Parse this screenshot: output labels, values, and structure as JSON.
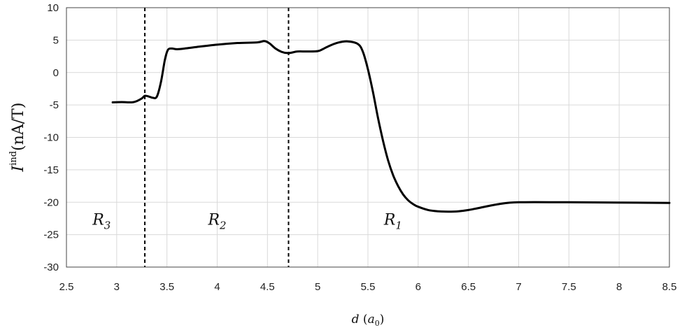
{
  "chart_data": {
    "type": "line",
    "xlabel": {
      "var": "d",
      "open": " (",
      "unit": "a",
      "sub": "0",
      "close": ")"
    },
    "ylabel": {
      "var": "I",
      "sup": "ind",
      "unit": "(nA/T)"
    },
    "xlim": [
      2.5,
      8.5
    ],
    "ylim": [
      -30,
      10
    ],
    "x_ticks": [
      "2.5",
      "3",
      "3.5",
      "4",
      "4.5",
      "5",
      "5.5",
      "6",
      "6.5",
      "7",
      "7.5",
      "8",
      "8.5"
    ],
    "y_ticks": [
      "10",
      "5",
      "0",
      "-5",
      "-10",
      "-15",
      "-20",
      "-25",
      "-30"
    ],
    "grid": true,
    "dashed_lines_x": [
      3.28,
      4.71
    ],
    "regions": [
      {
        "name": "R",
        "sub": "3",
        "x": 2.85,
        "y": -23.5
      },
      {
        "name": "R",
        "sub": "2",
        "x": 4.0,
        "y": -23.5
      },
      {
        "name": "R",
        "sub": "1",
        "x": 5.75,
        "y": -23.5
      }
    ],
    "series": [
      {
        "x": [
          2.96,
          3.05,
          3.15,
          3.2,
          3.25,
          3.28,
          3.32,
          3.36,
          3.4,
          3.44,
          3.48,
          3.51,
          3.55,
          3.6,
          3.7,
          3.8,
          4.0,
          4.2,
          4.4,
          4.47,
          4.52,
          4.58,
          4.64,
          4.7,
          4.75,
          4.8,
          4.9,
          5.0,
          5.05,
          5.1,
          5.2,
          5.3,
          5.4,
          5.45,
          5.5,
          5.55,
          5.6,
          5.65,
          5.7,
          5.75,
          5.8,
          5.85,
          5.9,
          5.95,
          6.0,
          6.1,
          6.2,
          6.3,
          6.4,
          6.5,
          6.6,
          6.8,
          7.0,
          7.5,
          8.0,
          8.5
        ],
        "y": [
          -4.6,
          -4.55,
          -4.6,
          -4.4,
          -4.0,
          -3.6,
          -3.7,
          -3.9,
          -3.7,
          -1.5,
          2.0,
          3.5,
          3.7,
          3.6,
          3.75,
          3.95,
          4.3,
          4.55,
          4.65,
          4.85,
          4.5,
          3.7,
          3.2,
          3.0,
          3.1,
          3.25,
          3.25,
          3.3,
          3.6,
          4.0,
          4.6,
          4.8,
          4.4,
          3.2,
          0.5,
          -3.0,
          -7.0,
          -10.5,
          -13.5,
          -15.8,
          -17.5,
          -18.8,
          -19.7,
          -20.3,
          -20.7,
          -21.2,
          -21.4,
          -21.45,
          -21.4,
          -21.2,
          -20.9,
          -20.3,
          -20.0,
          -20.0,
          -20.05,
          -20.1
        ]
      }
    ]
  }
}
